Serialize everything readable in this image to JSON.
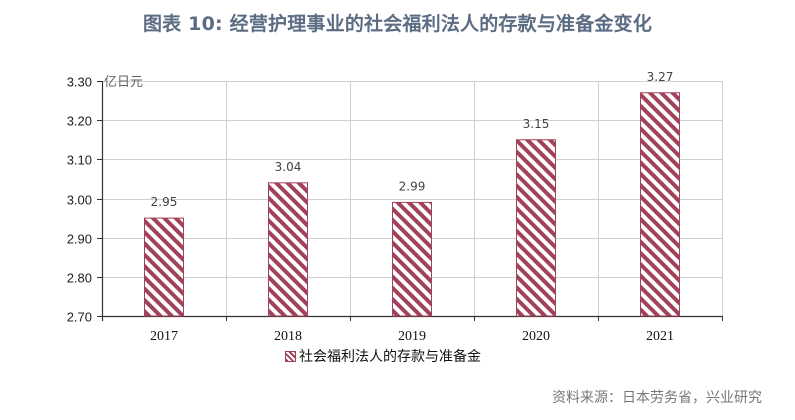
{
  "title": "图表 10: 经营护理事业的社会福利法人的存款与准备金变化",
  "unit": "亿日元",
  "legend": {
    "label": "社会福利法人的存款与准备金"
  },
  "source": "资料来源：日本劳务省，兴业研究",
  "colors": {
    "bar_stroke": "#a0425a",
    "bar_fill": "#ffffff",
    "grid": "#d0d0d0",
    "title": "#5b6c83"
  },
  "y_ticks": [
    "2.70",
    "2.80",
    "2.90",
    "3.00",
    "3.10",
    "3.20",
    "3.30"
  ],
  "x_ticks": [
    "2017",
    "2018",
    "2019",
    "2020",
    "2021"
  ],
  "value_labels": [
    "2.95",
    "3.04",
    "2.99",
    "3.15",
    "3.27"
  ],
  "chart_data": {
    "type": "bar",
    "title": "图表 10: 经营护理事业的社会福利法人的存款与准备金变化",
    "categories": [
      "2017",
      "2018",
      "2019",
      "2020",
      "2021"
    ],
    "series": [
      {
        "name": "社会福利法人的存款与准备金",
        "values": [
          2.95,
          3.04,
          2.99,
          3.15,
          3.27
        ]
      }
    ],
    "xlabel": "",
    "ylabel": "亿日元",
    "ylim": [
      2.7,
      3.3
    ],
    "yticks": [
      2.7,
      2.8,
      2.9,
      3.0,
      3.1,
      3.2,
      3.3
    ],
    "grid": true,
    "legend_position": "bottom",
    "fill_pattern": "diagonal-hatch"
  }
}
